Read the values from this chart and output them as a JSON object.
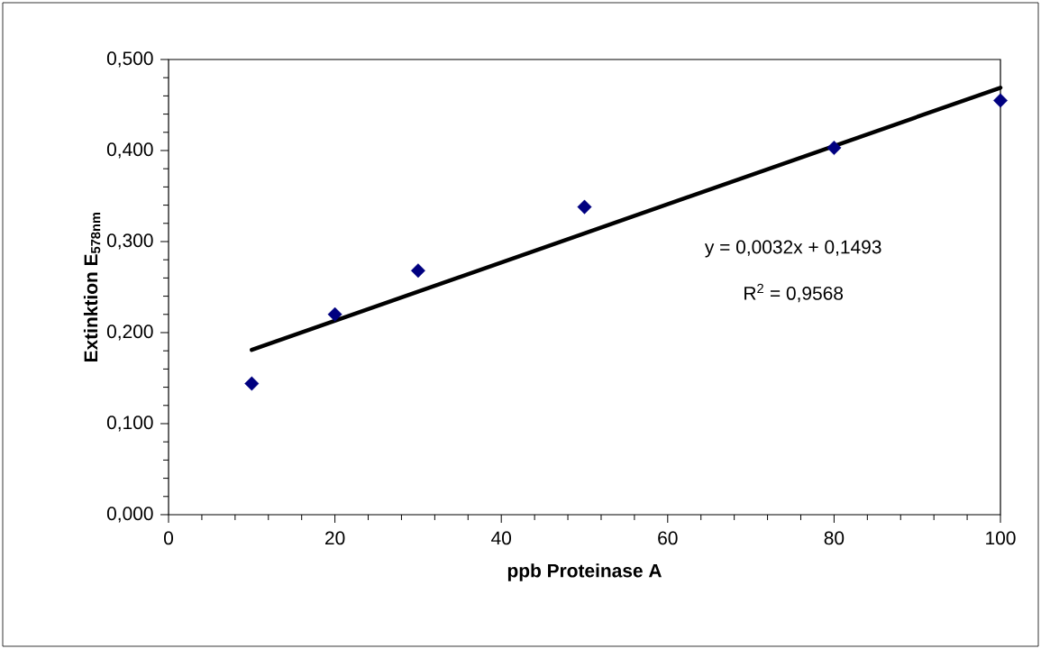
{
  "chart_data": {
    "type": "scatter",
    "xlabel": "ppb Proteinase A",
    "ylabel": "Extinktion E$_{578nm}$",
    "x": [
      10,
      20,
      30,
      50,
      80,
      100
    ],
    "series": [
      {
        "type": "scatter",
        "color": "#000080",
        "marker": "diamond",
        "values": [
          0.144,
          0.22,
          0.268,
          0.338,
          0.403,
          0.455
        ]
      },
      {
        "type": "line",
        "color": "#000000",
        "marker": "none",
        "x": [
          10,
          100
        ],
        "values": [
          0.181,
          0.469
        ]
      }
    ],
    "xlim": [
      0,
      100
    ],
    "xticks": [
      0,
      20,
      40,
      60,
      80,
      100
    ],
    "ylim": [
      0,
      0.5
    ],
    "yticks": [
      {
        "value": 0,
        "label": "0,000"
      },
      {
        "value": 0.1,
        "label": "0,100"
      },
      {
        "value": 0.2,
        "label": "0,200"
      },
      {
        "value": 0.3,
        "label": "0,300"
      },
      {
        "value": 0.4,
        "label": "0,400"
      },
      {
        "value": 0.5,
        "label": "0,500"
      }
    ],
    "annotations": [
      "y = 0,0032x + 0,1493",
      "R$^{2}$ = 0,9568"
    ]
  }
}
